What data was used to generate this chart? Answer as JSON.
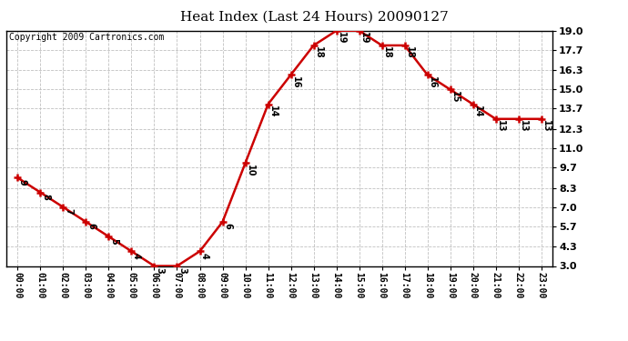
{
  "title": "Heat Index (Last 24 Hours) 20090127",
  "copyright": "Copyright 2009 Cartronics.com",
  "hours": [
    "00:00",
    "01:00",
    "02:00",
    "03:00",
    "04:00",
    "05:00",
    "06:00",
    "07:00",
    "08:00",
    "09:00",
    "10:00",
    "11:00",
    "12:00",
    "13:00",
    "14:00",
    "15:00",
    "16:00",
    "17:00",
    "18:00",
    "19:00",
    "20:00",
    "21:00",
    "22:00",
    "23:00"
  ],
  "values": [
    9,
    8,
    7,
    6,
    5,
    4,
    3,
    3,
    4,
    6,
    10,
    14,
    16,
    18,
    19,
    19,
    18,
    18,
    16,
    15,
    14,
    13,
    13,
    13
  ],
  "yticks": [
    3.0,
    4.3,
    5.7,
    7.0,
    8.3,
    9.7,
    11.0,
    12.3,
    13.7,
    15.0,
    16.3,
    17.7,
    19.0
  ],
  "ymin": 3.0,
  "ymax": 19.0,
  "line_color": "#cc0000",
  "marker_color": "#cc0000",
  "bg_color": "#ffffff",
  "grid_color": "#c0c0c0",
  "title_fontsize": 11,
  "copyright_fontsize": 7,
  "tick_fontsize": 7,
  "annot_fontsize": 7
}
